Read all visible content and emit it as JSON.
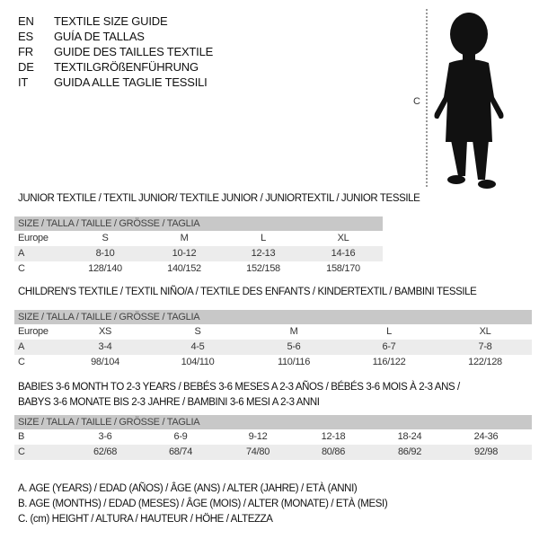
{
  "header": {
    "languages": [
      {
        "code": "EN",
        "text": "TEXTILE SIZE GUIDE"
      },
      {
        "code": "ES",
        "text": "GUÍA DE TALLAS"
      },
      {
        "code": "FR",
        "text": "GUIDE DES TAILLES TEXTILE"
      },
      {
        "code": "DE",
        "text": "TEXTILGRÖßENFÜHRUNG"
      },
      {
        "code": "IT",
        "text": "GUIDA ALLE TAGLIE TESSILI"
      }
    ],
    "figure_label": "C"
  },
  "junior": {
    "title": "JUNIOR TEXTILE / TEXTIL JUNIOR/ TEXTILE JUNIOR / JUNIORTEXTIL / JUNIOR TESSILE",
    "header": "SIZE / TALLA / TAILLE / GRÖSSE / TAGLIA",
    "rows": [
      {
        "label": "Europe",
        "values": [
          "S",
          "M",
          "L",
          "XL"
        ]
      },
      {
        "label": "A",
        "values": [
          "8-10",
          "10-12",
          "12-13",
          "14-16"
        ]
      },
      {
        "label": "C",
        "values": [
          "128/140",
          "140/152",
          "152/158",
          "158/170"
        ]
      }
    ]
  },
  "children": {
    "title": "CHILDREN'S TEXTILE / TEXTIL NIÑO/A / TEXTILE DES ENFANTS / KINDERTEXTIL / BAMBINI TESSILE",
    "header": "SIZE / TALLA / TAILLE / GRÖSSE / TAGLIA",
    "rows": [
      {
        "label": "Europe",
        "values": [
          "XS",
          "S",
          "M",
          "L",
          "XL"
        ]
      },
      {
        "label": "A",
        "values": [
          "3-4",
          "4-5",
          "5-6",
          "6-7",
          "7-8"
        ]
      },
      {
        "label": "C",
        "values": [
          "98/104",
          "104/110",
          "110/116",
          "116/122",
          "122/128"
        ]
      }
    ]
  },
  "babies": {
    "title_line1": "BABIES 3-6 MONTH TO 2-3 YEARS / BEBÉS 3-6 MESES A 2-3 AÑOS / BÉBÉS 3-6 MOIS À 2-3 ANS /",
    "title_line2": "BABYS 3-6 MONATE BIS 2-3 JAHRE / BAMBINI 3-6 MESI A 2-3 ANNI",
    "header": "SIZE / TALLA / TAILLE / GRÖSSE / TAGLIA",
    "rows": [
      {
        "label": "B",
        "values": [
          "3-6",
          "6-9",
          "9-12",
          "12-18",
          "18-24",
          "24-36"
        ]
      },
      {
        "label": "C",
        "values": [
          "62/68",
          "68/74",
          "74/80",
          "80/86",
          "86/92",
          "92/98"
        ]
      }
    ]
  },
  "legend": [
    "A. AGE (YEARS) / EDAD (AÑOS) / ÂGE (ANS) / ALTER (JAHRE) / ETÀ (ANNI)",
    "B. AGE (MONTHS) / EDAD (MESES) / ÂGE (MOIS) / ALTER (MONATE) / ETÀ (MESI)",
    "C. (cm) HEIGHT / ALTURA / HAUTEUR / HÖHE / ALTEZZA"
  ]
}
